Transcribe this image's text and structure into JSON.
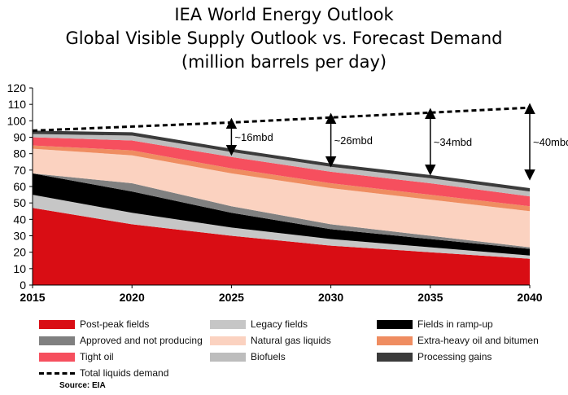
{
  "title_lines": [
    "IEA World Energy Outlook",
    "Global Visible Supply Outlook vs. Forecast Demand",
    "(million barrels per day)"
  ],
  "source": "Source: EIA",
  "colors": {
    "post_peak": "#d90d14",
    "legacy": "#c6c6c6",
    "ramp_up": "#000000",
    "approved": "#808080",
    "ngl": "#fbd2c0",
    "extra_heavy": "#ef8d61",
    "tight_oil": "#f64f5e",
    "biofuels": "#bdbdbd",
    "processing": "#3b3b3b",
    "demand": "#000000"
  },
  "chart_data": {
    "type": "area",
    "stacked": true,
    "x": [
      2015,
      2020,
      2025,
      2030,
      2035,
      2040
    ],
    "ylim": [
      0,
      120
    ],
    "yticks": [
      0,
      10,
      20,
      30,
      40,
      50,
      60,
      70,
      80,
      90,
      100,
      110,
      120
    ],
    "series": [
      {
        "name": "Post-peak fields",
        "key": "post_peak",
        "values": [
          47,
          37,
          30,
          24,
          20,
          16
        ]
      },
      {
        "name": "Legacy fields",
        "key": "legacy",
        "values": [
          8,
          7,
          5,
          4,
          3,
          2
        ]
      },
      {
        "name": "Fields in ramp-up",
        "key": "ramp_up",
        "values": [
          13,
          13,
          9,
          6,
          5,
          4
        ]
      },
      {
        "name": "Approved and not producing",
        "key": "approved",
        "values": [
          0,
          5,
          4,
          3,
          2,
          1
        ]
      },
      {
        "name": "Natural gas liquids",
        "key": "ngl",
        "values": [
          15,
          17,
          20,
          22,
          22,
          22
        ]
      },
      {
        "name": "Extra-heavy oil and bitumen",
        "key": "extra_heavy",
        "values": [
          2,
          3,
          3,
          3,
          3,
          3
        ]
      },
      {
        "name": "Tight oil",
        "key": "tight_oil",
        "values": [
          5,
          6,
          7,
          7,
          7,
          6
        ]
      },
      {
        "name": "Biofuels",
        "key": "biofuels",
        "values": [
          2,
          3,
          3,
          3,
          3,
          3
        ]
      },
      {
        "name": "Processing gains",
        "key": "processing",
        "values": [
          2,
          2,
          2,
          2,
          2,
          2
        ]
      }
    ],
    "demand": {
      "name": "Total liquids demand",
      "key": "demand",
      "values": [
        94,
        96.5,
        99,
        102,
        105,
        108
      ]
    },
    "annotations": [
      {
        "x": 2025,
        "top": 98.5,
        "bottom": 82,
        "label": "~16mbd"
      },
      {
        "x": 2030,
        "top": 101.5,
        "bottom": 75,
        "label": "~26mbd"
      },
      {
        "x": 2035,
        "top": 104.5,
        "bottom": 70,
        "label": "~34mbd"
      },
      {
        "x": 2040,
        "top": 107.5,
        "bottom": 67,
        "label": "~40mbd"
      }
    ],
    "legend": {
      "placement": "bottom",
      "order": [
        "post_peak",
        "legacy",
        "ramp_up",
        "approved",
        "ngl",
        "extra_heavy",
        "tight_oil",
        "biofuels",
        "processing",
        "demand"
      ]
    }
  }
}
